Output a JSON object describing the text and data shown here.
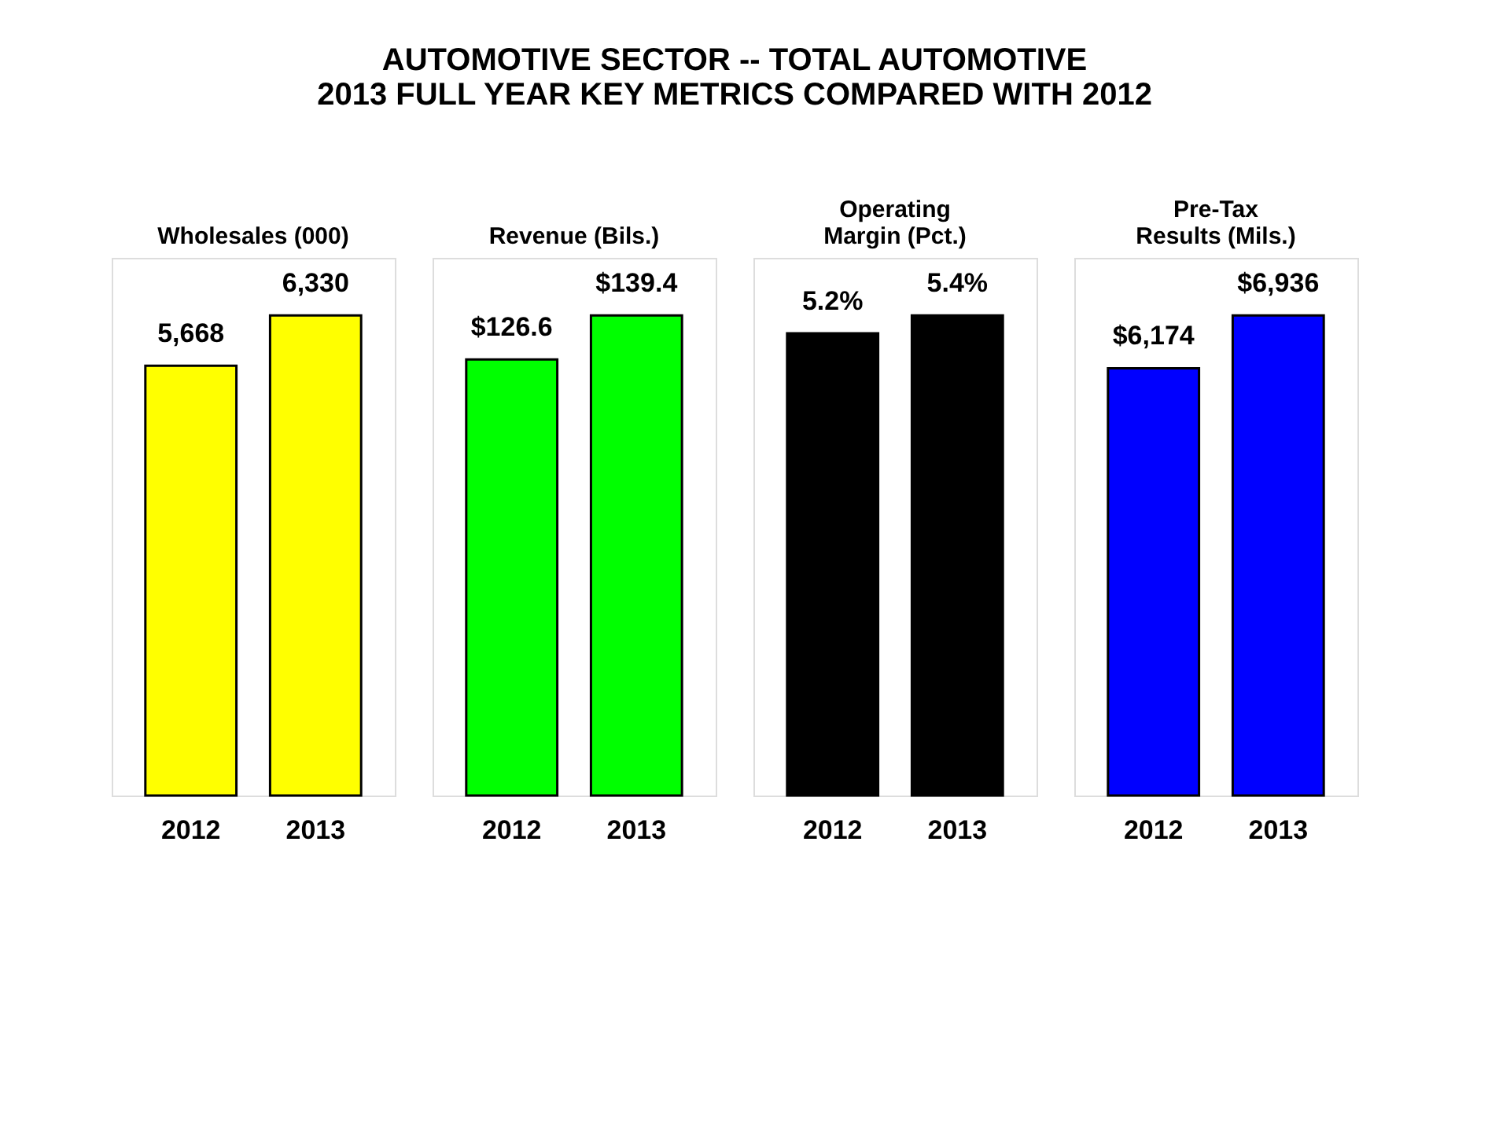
{
  "chart_data": [
    {
      "type": "bar",
      "title": "Wholesales (000)",
      "annotations": [
        "AUTOMOTIVE SECTOR -- TOTAL AUTOMOTIVE",
        "2013 FULL YEAR KEY METRICS COMPARED WITH 2012"
      ],
      "categories": [
        "2012",
        "2013"
      ],
      "values": [
        5668,
        6330
      ],
      "value_labels": [
        "5,668",
        "6,330"
      ],
      "color": "#ffff00"
    },
    {
      "type": "bar",
      "title": "Revenue (Bils.)",
      "categories": [
        "2012",
        "2013"
      ],
      "values": [
        126.6,
        139.4
      ],
      "value_labels": [
        "$126.6",
        "$139.4"
      ],
      "color": "#00ff00"
    },
    {
      "type": "bar",
      "title": "Operating Margin (Pct.)",
      "categories": [
        "2012",
        "2013"
      ],
      "values": [
        5.2,
        5.4
      ],
      "value_labels": [
        "5.2%",
        "5.4%"
      ],
      "color": "#000000"
    },
    {
      "type": "bar",
      "title": "Pre-Tax Results (Mils.)",
      "categories": [
        "2012",
        "2013"
      ],
      "values": [
        6174,
        6936
      ],
      "value_labels": [
        "$6,174",
        "$6,936"
      ],
      "color": "#0000ff"
    }
  ]
}
